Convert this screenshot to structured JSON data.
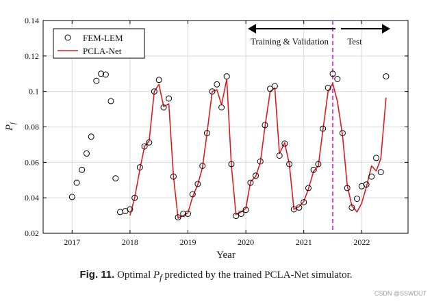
{
  "chart_data": {
    "type": "line",
    "xlabel": "Year",
    "ylabel_main": "P",
    "ylabel_sub": "f",
    "xlim": [
      2016.5,
      2022.8
    ],
    "ylim": [
      0.02,
      0.14
    ],
    "x_tick_labels": [
      "2017",
      "2018",
      "2019",
      "2020",
      "2021",
      "2022"
    ],
    "x_ticks": [
      2017,
      2018,
      2019,
      2020,
      2021,
      2022
    ],
    "y_tick_labels": [
      "0.02",
      "0.04",
      "0.06",
      "0.08",
      "0.1",
      "0.12",
      "0.14"
    ],
    "y_ticks": [
      0.02,
      0.04,
      0.06,
      0.08,
      0.1,
      0.12,
      0.14
    ],
    "grid": true,
    "legend_position": "top-left",
    "series": [
      {
        "name": "FEM-LEM",
        "style": "hollow-circle-markers",
        "color": "#000000",
        "x": [
          2017.0,
          2017.08,
          2017.17,
          2017.25,
          2017.33,
          2017.42,
          2017.5,
          2017.58,
          2017.67,
          2017.75,
          2017.83,
          2017.92,
          2018.0,
          2018.08,
          2018.17,
          2018.25,
          2018.33,
          2018.42,
          2018.5,
          2018.58,
          2018.67,
          2018.75,
          2018.83,
          2018.92,
          2019.0,
          2019.08,
          2019.17,
          2019.25,
          2019.33,
          2019.42,
          2019.5,
          2019.58,
          2019.67,
          2019.75,
          2019.83,
          2019.92,
          2020.0,
          2020.08,
          2020.17,
          2020.25,
          2020.33,
          2020.42,
          2020.5,
          2020.58,
          2020.67,
          2020.75,
          2020.83,
          2020.92,
          2021.0,
          2021.08,
          2021.17,
          2021.25,
          2021.33,
          2021.42,
          2021.5,
          2021.58,
          2021.67,
          2021.75,
          2021.83,
          2021.92,
          2022.0,
          2022.08,
          2022.17,
          2022.25,
          2022.33,
          2022.42
        ],
        "y": [
          0.0405,
          0.0485,
          0.0558,
          0.065,
          0.0745,
          0.106,
          0.11,
          0.1095,
          0.0945,
          0.051,
          0.032,
          0.0325,
          0.0335,
          0.04,
          0.0572,
          0.069,
          0.0712,
          0.1,
          0.1065,
          0.091,
          0.096,
          0.052,
          0.029,
          0.031,
          0.031,
          0.042,
          0.0478,
          0.058,
          0.0765,
          0.1,
          0.104,
          0.091,
          0.1085,
          0.059,
          0.0298,
          0.031,
          0.0332,
          0.0485,
          0.0525,
          0.0605,
          0.081,
          0.1015,
          0.103,
          0.0638,
          0.0706,
          0.059,
          0.0335,
          0.0345,
          0.0375,
          0.0455,
          0.0558,
          0.059,
          0.079,
          0.102,
          0.11,
          0.107,
          0.0765,
          0.0455,
          0.0345,
          0.0395,
          0.0465,
          0.0475,
          0.052,
          0.0625,
          0.0545,
          0.1085
        ]
      },
      {
        "name": "PCLA-Net",
        "style": "line",
        "color": "#e0191e",
        "x": [
          2018.0,
          2018.08,
          2018.17,
          2018.25,
          2018.33,
          2018.42,
          2018.5,
          2018.58,
          2018.67,
          2018.75,
          2018.83,
          2018.92,
          2019.0,
          2019.08,
          2019.17,
          2019.25,
          2019.33,
          2019.42,
          2019.5,
          2019.58,
          2019.67,
          2019.75,
          2019.83,
          2019.92,
          2020.0,
          2020.08,
          2020.17,
          2020.25,
          2020.33,
          2020.42,
          2020.5,
          2020.58,
          2020.67,
          2020.75,
          2020.83,
          2020.92,
          2021.0,
          2021.08,
          2021.17,
          2021.25,
          2021.33,
          2021.42,
          2021.5,
          2021.58,
          2021.67,
          2021.75,
          2021.83,
          2021.92,
          2022.0,
          2022.08,
          2022.17,
          2022.25,
          2022.33,
          2022.42
        ],
        "y": [
          0.03,
          0.04,
          0.056,
          0.069,
          0.072,
          0.1,
          0.104,
          0.0915,
          0.093,
          0.052,
          0.0285,
          0.03,
          0.0315,
          0.0405,
          0.0475,
          0.057,
          0.0765,
          0.1,
          0.101,
          0.0925,
          0.107,
          0.058,
          0.0305,
          0.032,
          0.034,
          0.049,
          0.052,
          0.06,
          0.08,
          0.1,
          0.102,
          0.065,
          0.071,
          0.059,
          0.0335,
          0.035,
          0.038,
          0.045,
          0.055,
          0.058,
          0.078,
          0.1,
          0.1045,
          0.0945,
          0.075,
          0.047,
          0.0355,
          0.032,
          0.037,
          0.046,
          0.058,
          0.0552,
          0.062,
          0.0965
        ]
      }
    ],
    "split_marker": {
      "x": 2021.5,
      "color": "#e040e0",
      "style": "dashed"
    },
    "annotations": {
      "left_label": "Training & Validation",
      "right_label": "Test"
    }
  },
  "caption": {
    "label": "Fig. 11.",
    "text_before": "Optimal ",
    "symbol": "P",
    "symbol_sub": "f",
    "text_after": " predicted by the trained PCLA-Net simulator."
  },
  "watermark": "CSDN @SSWDUT"
}
